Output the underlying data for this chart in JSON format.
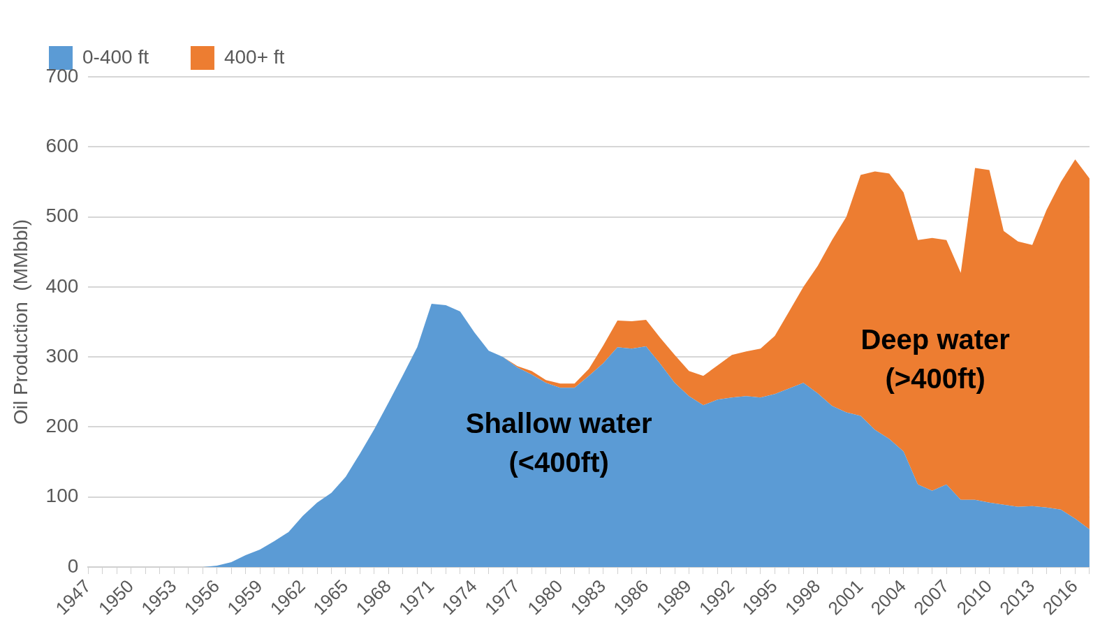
{
  "chart_data": {
    "type": "area",
    "stacked": true,
    "ylabel": "Oil Production  (MMbbl)",
    "categories": [
      "1947",
      null,
      null,
      "1950",
      null,
      null,
      "1953",
      null,
      null,
      "1956",
      null,
      null,
      "1959",
      null,
      null,
      "1962",
      null,
      null,
      "1965",
      null,
      null,
      "1968",
      null,
      null,
      "1971",
      null,
      null,
      "1974",
      null,
      null,
      "1977",
      null,
      null,
      "1980",
      null,
      null,
      "1983",
      null,
      null,
      "1986",
      null,
      null,
      "1989",
      null,
      null,
      "1992",
      null,
      null,
      "1995",
      null,
      null,
      "1998",
      null,
      null,
      "2001",
      null,
      null,
      "2004",
      null,
      null,
      "2007",
      null,
      null,
      "2010",
      null,
      null,
      "2013",
      null,
      null,
      "2016",
      null
    ],
    "series": [
      {
        "name": "0-400 ft",
        "color": "#5b9bd5",
        "values": [
          0,
          0,
          0,
          0,
          0,
          0,
          0,
          0,
          0,
          2,
          7,
          17,
          25,
          37,
          50,
          73,
          92,
          106,
          129,
          162,
          197,
          235,
          274,
          314,
          376,
          374,
          365,
          335,
          309,
          300,
          285,
          275,
          263,
          256,
          256,
          273,
          291,
          314,
          312,
          315,
          290,
          263,
          244,
          231,
          239,
          242,
          244,
          242,
          247,
          255,
          263,
          248,
          230,
          221,
          216,
          196,
          183,
          165,
          118,
          109,
          118,
          96,
          96,
          92,
          89,
          86,
          87,
          85,
          82,
          69,
          54
        ]
      },
      {
        "name": "400+ ft",
        "color": "#ed7d31",
        "values": [
          null,
          null,
          null,
          null,
          null,
          null,
          null,
          null,
          null,
          null,
          null,
          null,
          null,
          null,
          null,
          null,
          null,
          null,
          null,
          null,
          null,
          null,
          null,
          null,
          null,
          null,
          null,
          null,
          null,
          0,
          2,
          5,
          4,
          6,
          6,
          10,
          25,
          38,
          39,
          38,
          37,
          40,
          36,
          42,
          49,
          61,
          64,
          70,
          83,
          110,
          137,
          182,
          237,
          279,
          344,
          369,
          379,
          370,
          349,
          361,
          349,
          324,
          474,
          475,
          391,
          379,
          373,
          425,
          468,
          513,
          501
        ]
      }
    ],
    "ylim": [
      0,
      700
    ],
    "yticks": [
      0,
      100,
      200,
      300,
      400,
      500,
      600,
      700
    ],
    "grid": "y",
    "legend": "top left",
    "annotations": [
      "Shallow water\n(<400ft)",
      "Deep water\n(>400ft)"
    ]
  }
}
